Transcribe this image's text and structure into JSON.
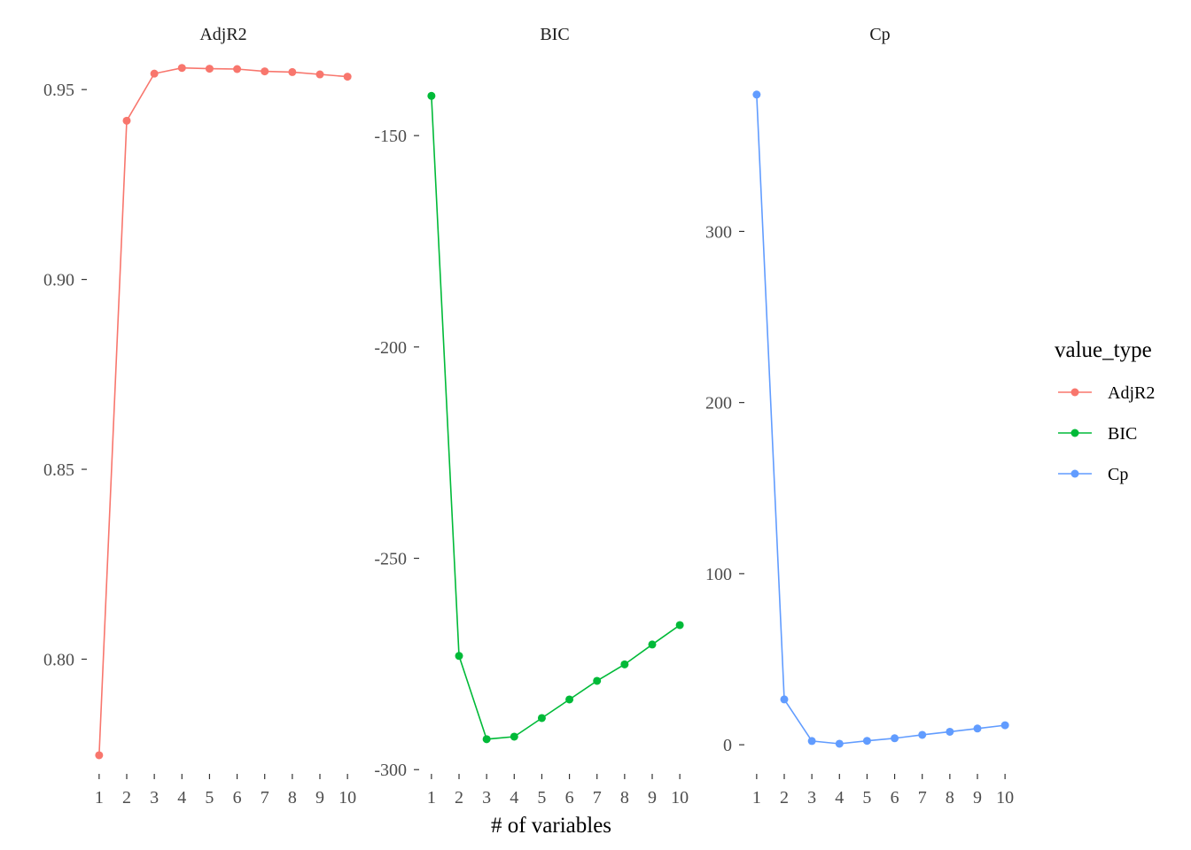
{
  "chart_data": {
    "type": "line",
    "xlabel": "# of variables",
    "legend": {
      "title": "value_type",
      "position": "right",
      "entries": [
        "AdjR2",
        "BIC",
        "Cp"
      ]
    },
    "grid": false,
    "x": [
      1,
      2,
      3,
      4,
      5,
      6,
      7,
      8,
      9,
      10
    ],
    "panels": [
      {
        "name": "AdjR2",
        "color": "#F8766D",
        "ylim": [
          0.7698,
          0.9568
        ],
        "yticks": [
          "0.80",
          "0.85",
          "0.90",
          "0.95"
        ],
        "ytick_values": [
          0.8,
          0.85,
          0.9,
          0.95
        ],
        "values": [
          0.7747,
          0.9418,
          0.9542,
          0.9557,
          0.9555,
          0.9554,
          0.9548,
          0.9546,
          0.954,
          0.9534
        ]
      },
      {
        "name": "BIC",
        "color": "#00BA38",
        "ylim": [
          -301.0,
          -133.0
        ],
        "yticks": [
          "-300",
          "-250",
          "-200",
          "-150"
        ],
        "ytick_values": [
          -300,
          -250,
          -200,
          -150
        ],
        "values": [
          -140.6,
          -273.1,
          -292.8,
          -292.2,
          -287.8,
          -283.4,
          -279.0,
          -275.1,
          -270.4,
          -265.8
        ]
      },
      {
        "name": "Cp",
        "color": "#619CFF",
        "ylim": [
          -17.0,
          398.0
        ],
        "yticks": [
          "0",
          "100",
          "200",
          "300"
        ],
        "ytick_values": [
          0,
          100,
          200,
          300
        ],
        "values": [
          380.0,
          26.5,
          2.2,
          0.6,
          2.3,
          3.8,
          5.8,
          7.6,
          9.5,
          11.4
        ]
      }
    ]
  }
}
